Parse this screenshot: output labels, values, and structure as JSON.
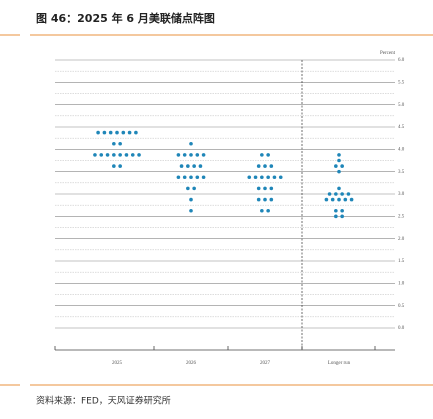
{
  "header": {
    "title": "图 46：2025 年 6 月美联储点阵图"
  },
  "chart_data": {
    "type": "dot",
    "y_label": "Percent",
    "categories": [
      "2025",
      "2026",
      "2027",
      "Longer run"
    ],
    "values": [
      [
        4.375,
        4.375,
        4.375,
        4.375,
        4.375,
        4.375,
        4.375,
        4.125,
        4.125,
        3.875,
        3.875,
        3.875,
        3.875,
        3.875,
        3.875,
        3.875,
        3.875,
        3.625,
        3.625
      ],
      [
        4.125,
        3.875,
        3.875,
        3.875,
        3.875,
        3.875,
        3.625,
        3.625,
        3.625,
        3.625,
        3.375,
        3.375,
        3.375,
        3.375,
        3.375,
        3.125,
        3.125,
        2.875,
        2.625
      ],
      [
        3.875,
        3.875,
        3.625,
        3.625,
        3.625,
        3.375,
        3.375,
        3.375,
        3.375,
        3.375,
        3.375,
        3.125,
        3.125,
        3.125,
        2.875,
        2.875,
        2.875,
        2.625,
        2.625
      ],
      [
        3.875,
        3.75,
        3.625,
        3.625,
        3.5,
        3.125,
        3,
        3,
        3,
        3,
        2.875,
        2.875,
        2.875,
        2.875,
        2.875,
        2.625,
        2.625,
        2.5,
        2.5
      ]
    ],
    "color": "#1f86b8",
    "ylim": [
      0,
      6
    ],
    "yticks": [
      {
        "value": 0,
        "label": "0.0"
      },
      {
        "value": 0.5,
        "label": "0.5"
      },
      {
        "value": 1,
        "label": "1.0"
      },
      {
        "value": 1.5,
        "label": "1.5"
      },
      {
        "value": 2,
        "label": "2.0"
      },
      {
        "value": 2.5,
        "label": "2.5"
      },
      {
        "value": 3,
        "label": "3.0"
      },
      {
        "value": 3.5,
        "label": "3.5"
      },
      {
        "value": 4,
        "label": "4.0"
      },
      {
        "value": 4.5,
        "label": "4.5"
      },
      {
        "value": 5,
        "label": "5.0"
      },
      {
        "value": 5.5,
        "label": "5.5"
      },
      {
        "value": 6,
        "label": "6.0"
      }
    ],
    "minor_yticks": [
      0.25,
      0.75,
      1.25,
      1.75,
      2.25,
      2.75,
      3.25,
      3.75,
      4.25,
      4.75,
      5.25,
      5.75
    ],
    "grid": true
  },
  "footer": {
    "source": "资料来源：FED，天风证券研究所"
  }
}
